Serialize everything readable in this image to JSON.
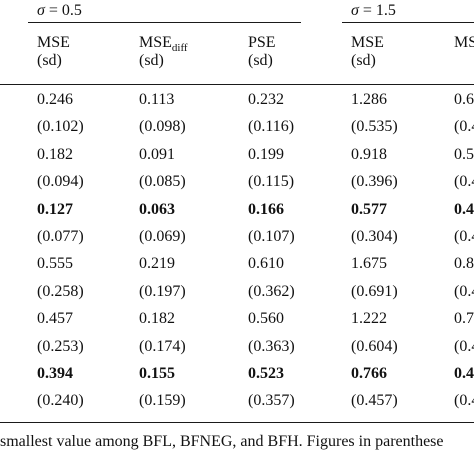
{
  "groups": [
    {
      "sigma_symbol": "σ",
      "sigma_rest": " = 0.5"
    },
    {
      "sigma_symbol": "σ",
      "sigma_rest": " = 1.5"
    }
  ],
  "columns": [
    {
      "name": "MSE",
      "name_sub": "",
      "sd": "(sd)"
    },
    {
      "name": "MSE",
      "name_sub": "diff",
      "sd": "(sd)"
    },
    {
      "name": "PSE",
      "name_sub": "",
      "sd": "(sd)"
    },
    {
      "name": "MSE",
      "name_sub": "",
      "sd": "(sd)"
    },
    {
      "name": "MS",
      "name_sub": "",
      "sd": ""
    }
  ],
  "rows": [
    {
      "bold": false,
      "cells": [
        "0.246",
        "0.113",
        "0.232",
        "1.286",
        "0.6"
      ]
    },
    {
      "bold": false,
      "cells": [
        "(0.102)",
        "(0.098)",
        "(0.116)",
        "(0.535)",
        "(0.4"
      ]
    },
    {
      "bold": false,
      "cells": [
        "0.182",
        "0.091",
        "0.199",
        "0.918",
        "0.5"
      ]
    },
    {
      "bold": false,
      "cells": [
        "(0.094)",
        "(0.085)",
        "(0.115)",
        "(0.396)",
        "(0.4"
      ]
    },
    {
      "bold": true,
      "cells": [
        "0.127",
        "0.063",
        "0.166",
        "0.577",
        "0.4"
      ]
    },
    {
      "bold": false,
      "cells": [
        "(0.077)",
        "(0.069)",
        "(0.107)",
        "(0.304)",
        "(0.4"
      ]
    },
    {
      "bold": false,
      "cells": [
        "0.555",
        "0.219",
        "0.610",
        "1.675",
        "0.8"
      ]
    },
    {
      "bold": false,
      "cells": [
        "(0.258)",
        "(0.197)",
        "(0.362)",
        "(0.691)",
        "(0.4"
      ]
    },
    {
      "bold": false,
      "cells": [
        "0.457",
        "0.182",
        "0.560",
        "1.222",
        "0.7"
      ]
    },
    {
      "bold": false,
      "cells": [
        "(0.253)",
        "(0.174)",
        "(0.363)",
        "(0.604)",
        "(0.4"
      ]
    },
    {
      "bold": true,
      "cells": [
        "0.394",
        "0.155",
        "0.523",
        "0.766",
        "0.4"
      ]
    },
    {
      "bold": false,
      "cells": [
        "(0.240)",
        "(0.159)",
        "(0.357)",
        "(0.457)",
        "(0.4"
      ]
    }
  ],
  "footnote": "smallest value among BFL, BFNEG, and BFH. Figures in parenthese"
}
